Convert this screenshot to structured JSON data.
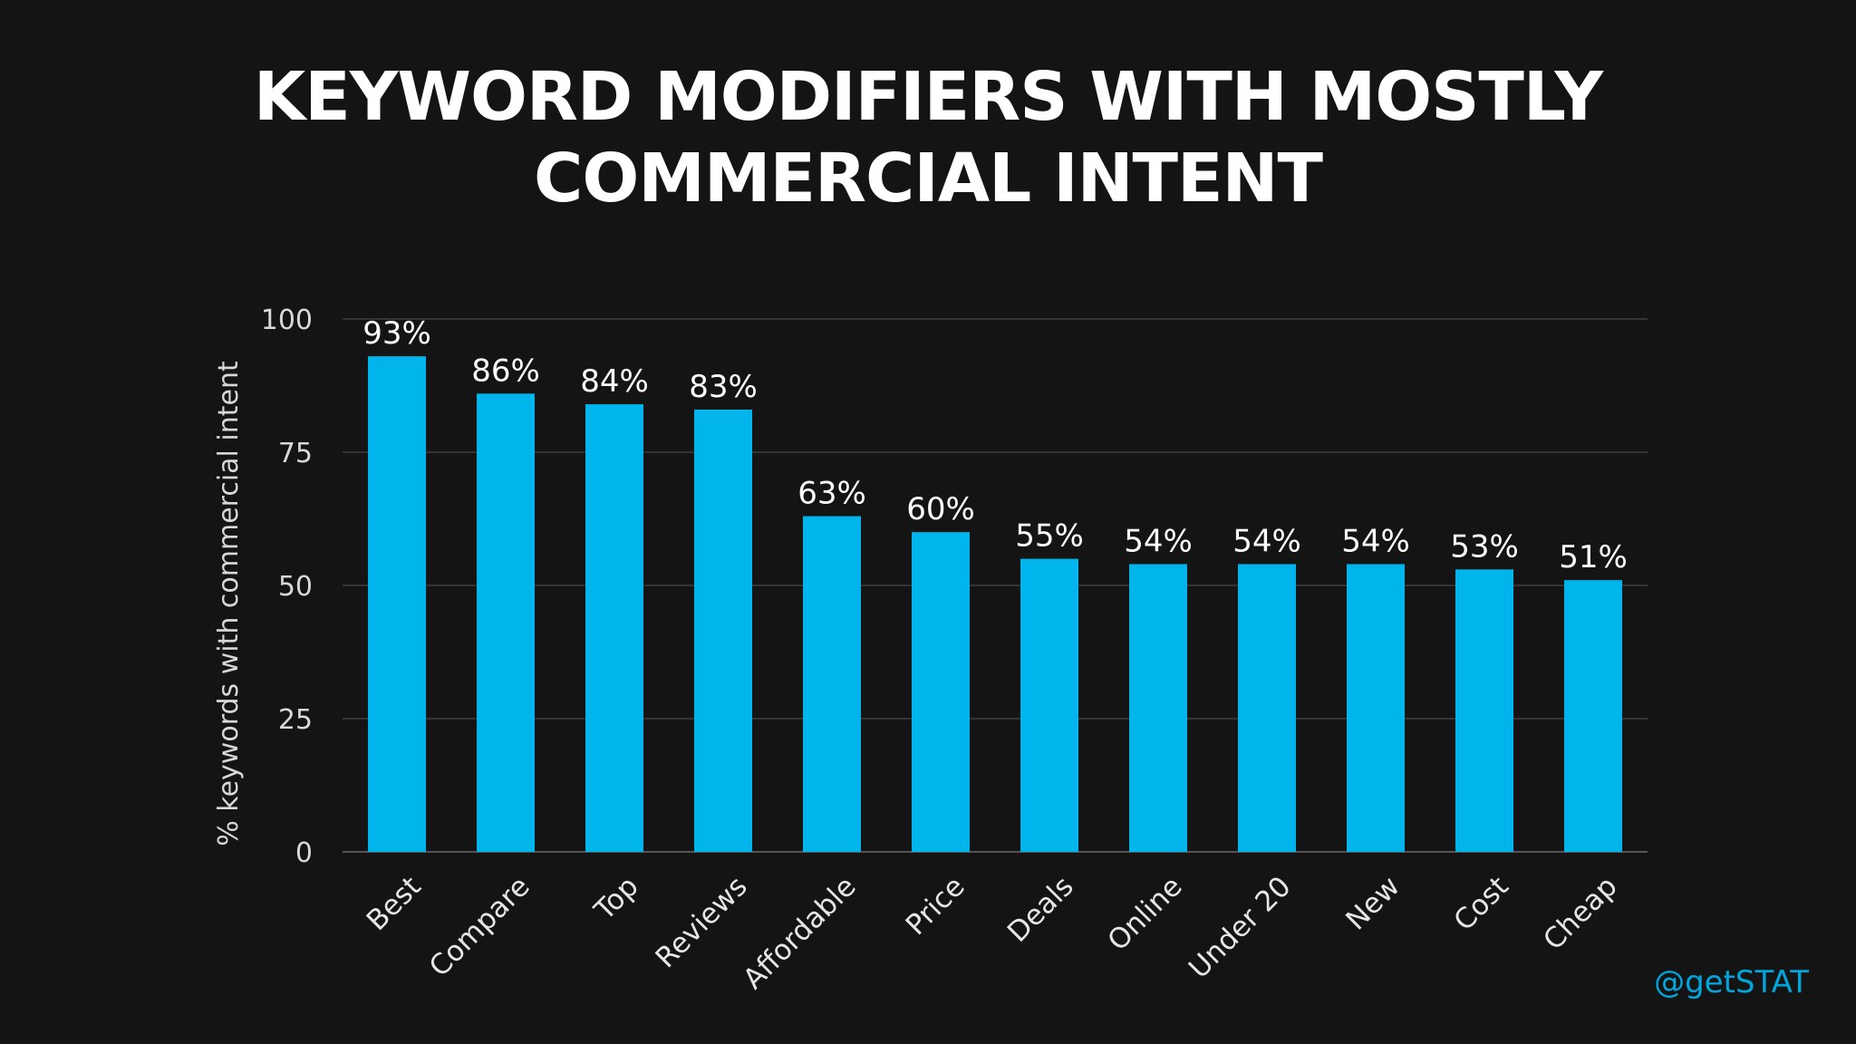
{
  "title_lines": [
    "KEYWORD MODIFIERS WITH MOSTLY",
    "COMMERCIAL INTENT"
  ],
  "watermark": "@getSTAT",
  "colors": {
    "background": "#141414",
    "bar": "#00b5ec",
    "watermark": "#00a6dc"
  },
  "chart_data": {
    "type": "bar",
    "title": "KEYWORD MODIFIERS WITH MOSTLY COMMERCIAL INTENT",
    "xlabel": "",
    "ylabel": "% keywords with commercial intent",
    "ylim": [
      0,
      100
    ],
    "yticks": [
      0,
      25,
      50,
      75,
      100
    ],
    "grid": true,
    "categories": [
      "Best",
      "Compare",
      "Top",
      "Reviews",
      "Affordable",
      "Price",
      "Deals",
      "Online",
      "Under 20",
      "New",
      "Cost",
      "Cheap"
    ],
    "values": [
      93,
      86,
      84,
      83,
      63,
      60,
      55,
      54,
      54,
      54,
      53,
      51
    ],
    "data_labels": [
      "93%",
      "86%",
      "84%",
      "83%",
      "63%",
      "60%",
      "55%",
      "54%",
      "54%",
      "54%",
      "53%",
      "51%"
    ]
  }
}
